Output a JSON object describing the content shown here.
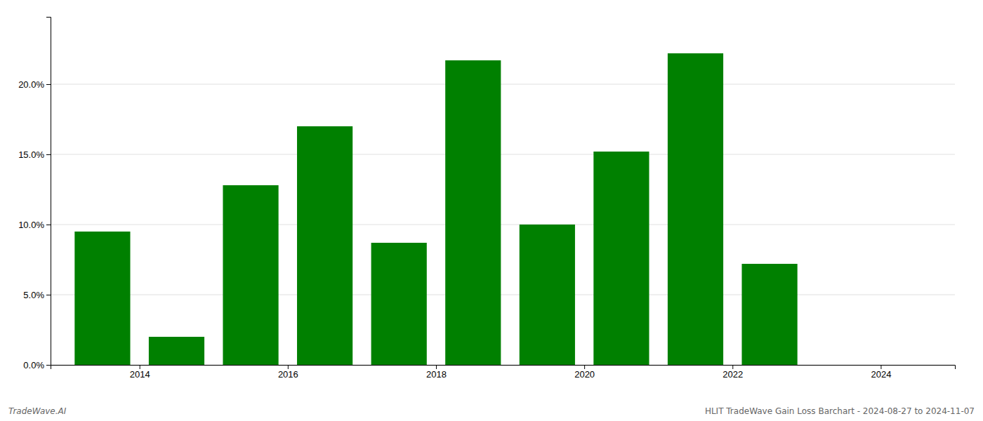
{
  "chart_data": {
    "type": "bar",
    "x": [
      2013.5,
      2014.5,
      2015.5,
      2016.5,
      2017.5,
      2018.5,
      2019.5,
      2020.5,
      2021.5,
      2022.5
    ],
    "values": [
      0.095,
      0.02,
      0.128,
      0.17,
      0.087,
      0.217,
      0.1,
      0.152,
      0.222,
      0.072
    ],
    "color": "#008000",
    "xlim": [
      2012.8,
      2025.0
    ],
    "xticks": [
      2014,
      2016,
      2018,
      2020,
      2022,
      2024
    ],
    "ylim": [
      0,
      0.248
    ],
    "yticks": [
      {
        "value": 0.0,
        "label": "0.0%"
      },
      {
        "value": 0.05,
        "label": "5.0%"
      },
      {
        "value": 0.1,
        "label": "10.0%"
      },
      {
        "value": 0.15,
        "label": "15.0%"
      },
      {
        "value": 0.2,
        "label": "20.0%"
      }
    ],
    "grid": true,
    "annotations": [
      "TradeWave.AI",
      "HLIT TradeWave Gain Loss Barchart - 2024-08-27 to 2024-11-07"
    ]
  }
}
